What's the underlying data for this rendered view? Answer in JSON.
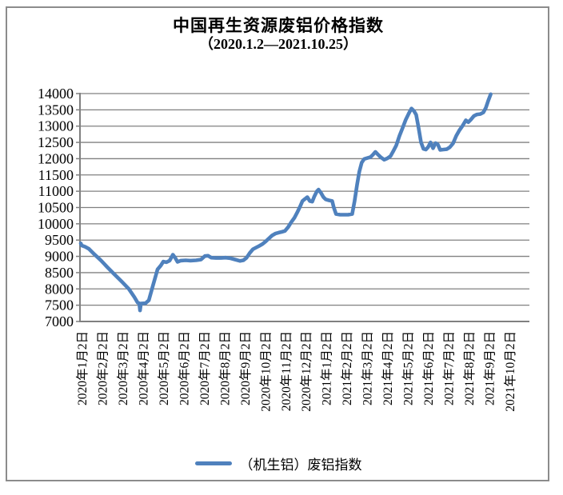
{
  "chart": {
    "title": "中国再生资源废铝价格指数",
    "subtitle": "（2020.1.2—2021.10.25）",
    "legend_label": "（机生铝）废铝指数"
  },
  "colors": {
    "line": "#4f81bd",
    "grid": "#808080",
    "axis": "#808080",
    "text": "#000000",
    "frame": "#8c8c8c"
  },
  "chart_data": {
    "type": "line",
    "title": "中国再生资源废铝价格指数",
    "subtitle": "（2020.1.2—2021.10.25）",
    "xlabel": "",
    "ylabel": "",
    "ylim": [
      7000,
      14000
    ],
    "y_step": 500,
    "grid": "horizontal",
    "legend_position": "bottom",
    "x_tick_labels": [
      "2020年1月2日",
      "2020年2月2日",
      "2020年3月2日",
      "2020年4月2日",
      "2020年5月2日",
      "2020年6月2日",
      "2020年7月2日",
      "2020年8月2日",
      "2020年9月2日",
      "2020年10月2日",
      "2020年11月2日",
      "2020年12月2日",
      "2021年1月2日",
      "2021年2月2日",
      "2021年3月2日",
      "2021年4月2日",
      "2021年5月2日",
      "2021年6月2日",
      "2021年7月2日",
      "2021年8月2日",
      "2021年9月2日",
      "2021年10月2日"
    ],
    "x_unit": "month index along category axis (0 = 2020年1月2日, 21 = 2021年10月2日)",
    "series": [
      {
        "name": "（机生铝）废铝指数",
        "color": "#4f81bd",
        "points": [
          [
            0.0,
            9400
          ],
          [
            0.05,
            9330
          ],
          [
            0.2,
            9300
          ],
          [
            0.4,
            9230
          ],
          [
            0.67,
            9060
          ],
          [
            1.0,
            8870
          ],
          [
            1.3,
            8670
          ],
          [
            1.65,
            8450
          ],
          [
            2.0,
            8230
          ],
          [
            2.36,
            8000
          ],
          [
            2.63,
            7750
          ],
          [
            2.79,
            7580
          ],
          [
            2.87,
            7560
          ],
          [
            2.91,
            7340
          ],
          [
            2.95,
            7550
          ],
          [
            3.18,
            7560
          ],
          [
            3.34,
            7650
          ],
          [
            3.54,
            8100
          ],
          [
            3.77,
            8600
          ],
          [
            3.93,
            8720
          ],
          [
            4.05,
            8840
          ],
          [
            4.2,
            8820
          ],
          [
            4.36,
            8870
          ],
          [
            4.52,
            9050
          ],
          [
            4.64,
            8950
          ],
          [
            4.75,
            8830
          ],
          [
            4.91,
            8870
          ],
          [
            5.15,
            8880
          ],
          [
            5.38,
            8870
          ],
          [
            5.66,
            8880
          ],
          [
            5.9,
            8900
          ],
          [
            6.09,
            9010
          ],
          [
            6.25,
            9020
          ],
          [
            6.4,
            8960
          ],
          [
            6.64,
            8950
          ],
          [
            6.88,
            8950
          ],
          [
            7.11,
            8960
          ],
          [
            7.35,
            8940
          ],
          [
            7.58,
            8900
          ],
          [
            7.82,
            8860
          ],
          [
            7.98,
            8880
          ],
          [
            8.13,
            8950
          ],
          [
            8.29,
            9100
          ],
          [
            8.45,
            9220
          ],
          [
            8.6,
            9270
          ],
          [
            8.76,
            9320
          ],
          [
            8.92,
            9380
          ],
          [
            9.08,
            9460
          ],
          [
            9.23,
            9550
          ],
          [
            9.39,
            9640
          ],
          [
            9.55,
            9700
          ],
          [
            9.71,
            9730
          ],
          [
            9.86,
            9750
          ],
          [
            10.02,
            9780
          ],
          [
            10.18,
            9900
          ],
          [
            10.33,
            10050
          ],
          [
            10.49,
            10190
          ],
          [
            10.65,
            10380
          ],
          [
            10.77,
            10540
          ],
          [
            10.88,
            10700
          ],
          [
            11.0,
            10760
          ],
          [
            11.12,
            10820
          ],
          [
            11.24,
            10700
          ],
          [
            11.36,
            10680
          ],
          [
            11.47,
            10850
          ],
          [
            11.59,
            11000
          ],
          [
            11.67,
            11050
          ],
          [
            11.79,
            10950
          ],
          [
            11.91,
            10820
          ],
          [
            12.02,
            10750
          ],
          [
            12.18,
            10720
          ],
          [
            12.34,
            10700
          ],
          [
            12.42,
            10500
          ],
          [
            12.53,
            10300
          ],
          [
            12.73,
            10280
          ],
          [
            12.93,
            10280
          ],
          [
            13.12,
            10280
          ],
          [
            13.32,
            10300
          ],
          [
            13.44,
            10700
          ],
          [
            13.56,
            11200
          ],
          [
            13.67,
            11600
          ],
          [
            13.79,
            11880
          ],
          [
            13.91,
            11990
          ],
          [
            14.07,
            12020
          ],
          [
            14.22,
            12050
          ],
          [
            14.34,
            12120
          ],
          [
            14.46,
            12210
          ],
          [
            14.58,
            12130
          ],
          [
            14.73,
            12040
          ],
          [
            14.89,
            11970
          ],
          [
            15.05,
            12010
          ],
          [
            15.2,
            12080
          ],
          [
            15.32,
            12210
          ],
          [
            15.48,
            12400
          ],
          [
            15.64,
            12700
          ],
          [
            15.8,
            12950
          ],
          [
            15.95,
            13200
          ],
          [
            16.11,
            13400
          ],
          [
            16.23,
            13540
          ],
          [
            16.35,
            13470
          ],
          [
            16.46,
            13350
          ],
          [
            16.58,
            12950
          ],
          [
            16.7,
            12500
          ],
          [
            16.82,
            12300
          ],
          [
            16.94,
            12280
          ],
          [
            17.05,
            12360
          ],
          [
            17.17,
            12500
          ],
          [
            17.29,
            12320
          ],
          [
            17.41,
            12480
          ],
          [
            17.52,
            12440
          ],
          [
            17.64,
            12270
          ],
          [
            17.8,
            12280
          ],
          [
            17.96,
            12290
          ],
          [
            18.11,
            12350
          ],
          [
            18.27,
            12470
          ],
          [
            18.43,
            12700
          ],
          [
            18.58,
            12870
          ],
          [
            18.74,
            13010
          ],
          [
            18.9,
            13180
          ],
          [
            19.02,
            13120
          ],
          [
            19.13,
            13190
          ],
          [
            19.29,
            13310
          ],
          [
            19.45,
            13360
          ],
          [
            19.61,
            13370
          ],
          [
            19.76,
            13420
          ],
          [
            19.88,
            13560
          ],
          [
            20.0,
            13780
          ],
          [
            20.12,
            13980
          ]
        ]
      }
    ]
  }
}
